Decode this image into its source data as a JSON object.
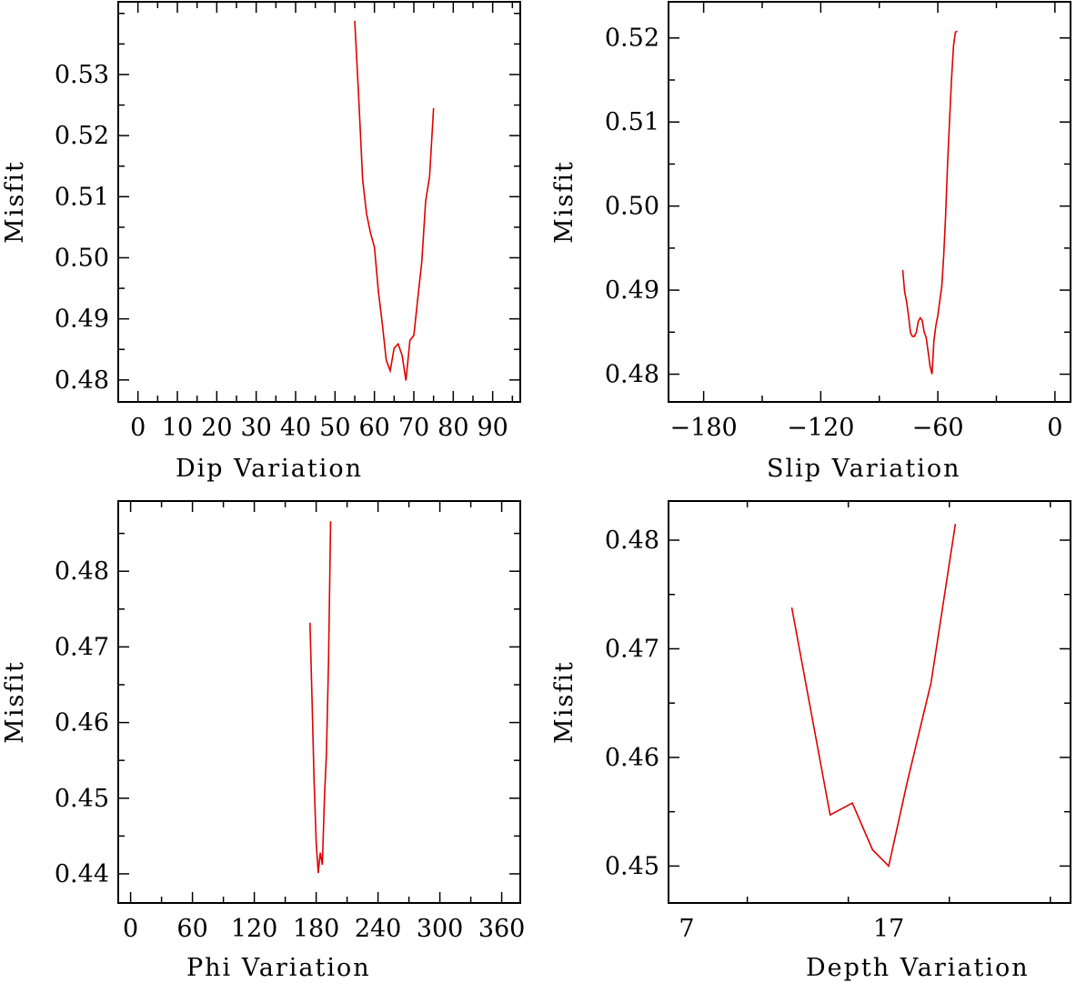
{
  "chart_data": [
    {
      "id": "dip",
      "type": "line",
      "xlabel": "Dip    Variation",
      "ylabel": "Misfit",
      "xlim": [
        -5,
        97
      ],
      "ylim": [
        0.4764,
        0.5419
      ],
      "x_ticks": [
        0,
        10,
        20,
        30,
        40,
        50,
        60,
        70,
        80,
        90
      ],
      "y_ticks": [
        0.48,
        0.49,
        0.5,
        0.51,
        0.52,
        0.53
      ],
      "y_tick_labels": [
        "0.48",
        "0.49",
        "0.50",
        "0.51",
        "0.52",
        "0.53"
      ],
      "series": [
        {
          "name": "Misfit",
          "color": "#e00000",
          "x": [
            55,
            56,
            57,
            58,
            59,
            60,
            61,
            62,
            63,
            64,
            65,
            66,
            67,
            68,
            69,
            70,
            71,
            72,
            73,
            74,
            75
          ],
          "y": [
            0.5388,
            0.5265,
            0.5128,
            0.5072,
            0.5041,
            0.5017,
            0.4945,
            0.4892,
            0.4832,
            0.4815,
            0.4852,
            0.4859,
            0.4841,
            0.4799,
            0.4865,
            0.4873,
            0.4933,
            0.4993,
            0.5093,
            0.5133,
            0.5245
          ]
        }
      ]
    },
    {
      "id": "slip",
      "type": "line",
      "xlabel": "Slip   Variation",
      "ylabel": "Misfit",
      "xlim": [
        -198,
        8
      ],
      "ylim": [
        0.4767,
        0.5243
      ],
      "x_ticks": [
        -180,
        -120,
        -60,
        0
      ],
      "x_tick_labels": [
        "−180",
        "−120",
        "−60",
        "0"
      ],
      "y_ticks": [
        0.48,
        0.49,
        0.5,
        0.51,
        0.52
      ],
      "y_tick_labels": [
        "0.48",
        "0.49",
        "0.50",
        "0.51",
        "0.52"
      ],
      "series": [
        {
          "name": "Misfit",
          "color": "#e00000",
          "x": [
            -78,
            -77,
            -76,
            -75,
            -74,
            -73,
            -72,
            -71,
            -70,
            -69,
            -68,
            -67,
            -66,
            -65,
            -64,
            -63,
            -62,
            -61,
            -60,
            -59,
            -58,
            -57,
            -56,
            -55,
            -54,
            -53,
            -52,
            -51,
            -50
          ],
          "y": [
            0.4924,
            0.4898,
            0.4886,
            0.4869,
            0.4849,
            0.4845,
            0.4845,
            0.485,
            0.4863,
            0.4867,
            0.4864,
            0.485,
            0.4844,
            0.4827,
            0.481,
            0.48,
            0.484,
            0.4858,
            0.487,
            0.4887,
            0.4904,
            0.494,
            0.499,
            0.505,
            0.5102,
            0.515,
            0.519,
            0.5207,
            0.5208
          ]
        }
      ]
    },
    {
      "id": "phi",
      "type": "line",
      "xlabel": "Phi    Variation",
      "ylabel": "Misfit",
      "xlim": [
        -12,
        378
      ],
      "ylim": [
        0.43615,
        0.48928
      ],
      "x_ticks": [
        0,
        60,
        120,
        180,
        240,
        300,
        360
      ],
      "y_ticks": [
        0.44,
        0.45,
        0.46,
        0.47,
        0.48
      ],
      "y_tick_labels": [
        "0.44",
        "0.45",
        "0.46",
        "0.47",
        "0.48"
      ],
      "series": [
        {
          "name": "Misfit",
          "color": "#e00000",
          "x": [
            174,
            176,
            178,
            180,
            182,
            184,
            186,
            188,
            190,
            192,
            194
          ],
          "y": [
            0.4732,
            0.4629,
            0.4524,
            0.4442,
            0.4401,
            0.4428,
            0.4412,
            0.45,
            0.4559,
            0.468,
            0.4866
          ]
        }
      ]
    },
    {
      "id": "depth",
      "type": "line",
      "xlabel": "Depth  Variation",
      "ylabel": "Misfit",
      "xlim": [
        6.1,
        26
      ],
      "ylim": [
        0.4466,
        0.4836
      ],
      "x_ticks": [
        7,
        17
      ],
      "y_ticks": [
        0.45,
        0.46,
        0.47,
        0.48
      ],
      "y_tick_labels": [
        "0.45",
        "0.46",
        "0.47",
        "0.48"
      ],
      "series": [
        {
          "name": "Misfit",
          "color": "#e00000",
          "x": [
            12.2,
            14.1,
            15.2,
            16.2,
            17.0,
            17.9,
            19.1,
            20.3
          ],
          "y": [
            0.4738,
            0.4547,
            0.4558,
            0.4515,
            0.45,
            0.4576,
            0.4669,
            0.4815
          ]
        }
      ]
    }
  ]
}
